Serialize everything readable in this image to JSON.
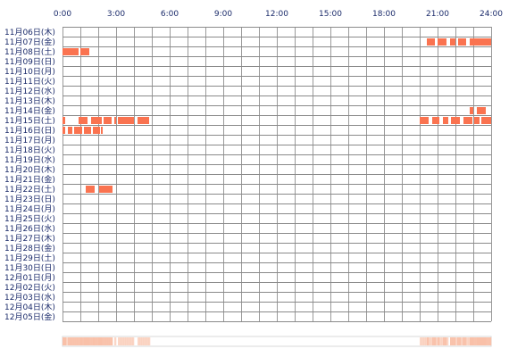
{
  "chart_data": {
    "type": "heatmap",
    "title": "",
    "x_ticks": [
      "0:00",
      "3:00",
      "6:00",
      "9:00",
      "12:00",
      "15:00",
      "18:00",
      "21:00",
      "24:00"
    ],
    "x_range_hours": [
      0,
      24
    ],
    "grid": true,
    "rows": [
      "11月06日(木)",
      "11月07日(金)",
      "11月08日(土)",
      "11月09日(日)",
      "11月10日(月)",
      "11月11日(火)",
      "11月12日(水)",
      "11月13日(木)",
      "11月14日(金)",
      "11月15日(土)",
      "11月16日(日)",
      "11月17日(月)",
      "11月18日(火)",
      "11月19日(水)",
      "11月20日(木)",
      "11月21日(金)",
      "11月22日(土)",
      "11月23日(日)",
      "11月24日(月)",
      "11月25日(火)",
      "11月26日(水)",
      "11月27日(木)",
      "11月28日(金)",
      "11月29日(土)",
      "11月30日(日)",
      "12月01日(月)",
      "12月02日(火)",
      "12月03日(水)",
      "12月04日(木)",
      "12月05日(金)"
    ],
    "activity": [
      {
        "day": "11月07日(金)",
        "intervals": [
          [
            20.4,
            20.85
          ],
          [
            21.0,
            21.5
          ],
          [
            21.7,
            22.0
          ],
          [
            22.15,
            22.6
          ],
          [
            22.8,
            24.0
          ]
        ]
      },
      {
        "day": "11月08日(土)",
        "intervals": [
          [
            0.0,
            0.9
          ],
          [
            1.0,
            1.5
          ]
        ]
      },
      {
        "day": "11月14日(金)",
        "intervals": [
          [
            22.8,
            23.0
          ],
          [
            23.2,
            23.7
          ]
        ]
      },
      {
        "day": "11月15日(土)",
        "intervals": [
          [
            0.0,
            0.15
          ],
          [
            0.9,
            1.4
          ],
          [
            1.6,
            2.2
          ],
          [
            2.3,
            2.75
          ],
          [
            2.9,
            3.0
          ],
          [
            3.1,
            4.0
          ],
          [
            4.2,
            4.85
          ],
          [
            20.0,
            20.5
          ],
          [
            20.7,
            21.1
          ],
          [
            21.3,
            21.6
          ],
          [
            21.75,
            22.25
          ],
          [
            22.45,
            22.95
          ],
          [
            23.05,
            23.35
          ],
          [
            23.45,
            24.0
          ]
        ]
      },
      {
        "day": "11月16日(日)",
        "intervals": [
          [
            0.0,
            0.15
          ],
          [
            0.3,
            0.55
          ],
          [
            0.65,
            1.1
          ],
          [
            1.2,
            1.6
          ],
          [
            1.7,
            2.1
          ],
          [
            2.15,
            2.25
          ]
        ]
      },
      {
        "day": "11月22日(土)",
        "intervals": [
          [
            1.3,
            1.8
          ],
          [
            2.05,
            2.8
          ]
        ]
      }
    ],
    "summary_bar": "aggregate activity strip below the grid"
  },
  "colors": {
    "bar": "#fa7350",
    "grid": "#9a9a9a",
    "row_border": "#8a8a8a",
    "label_text": "#1a2a6a",
    "summary_bg": "#fdf0ea",
    "summary_fill": "#f9c0a8"
  }
}
